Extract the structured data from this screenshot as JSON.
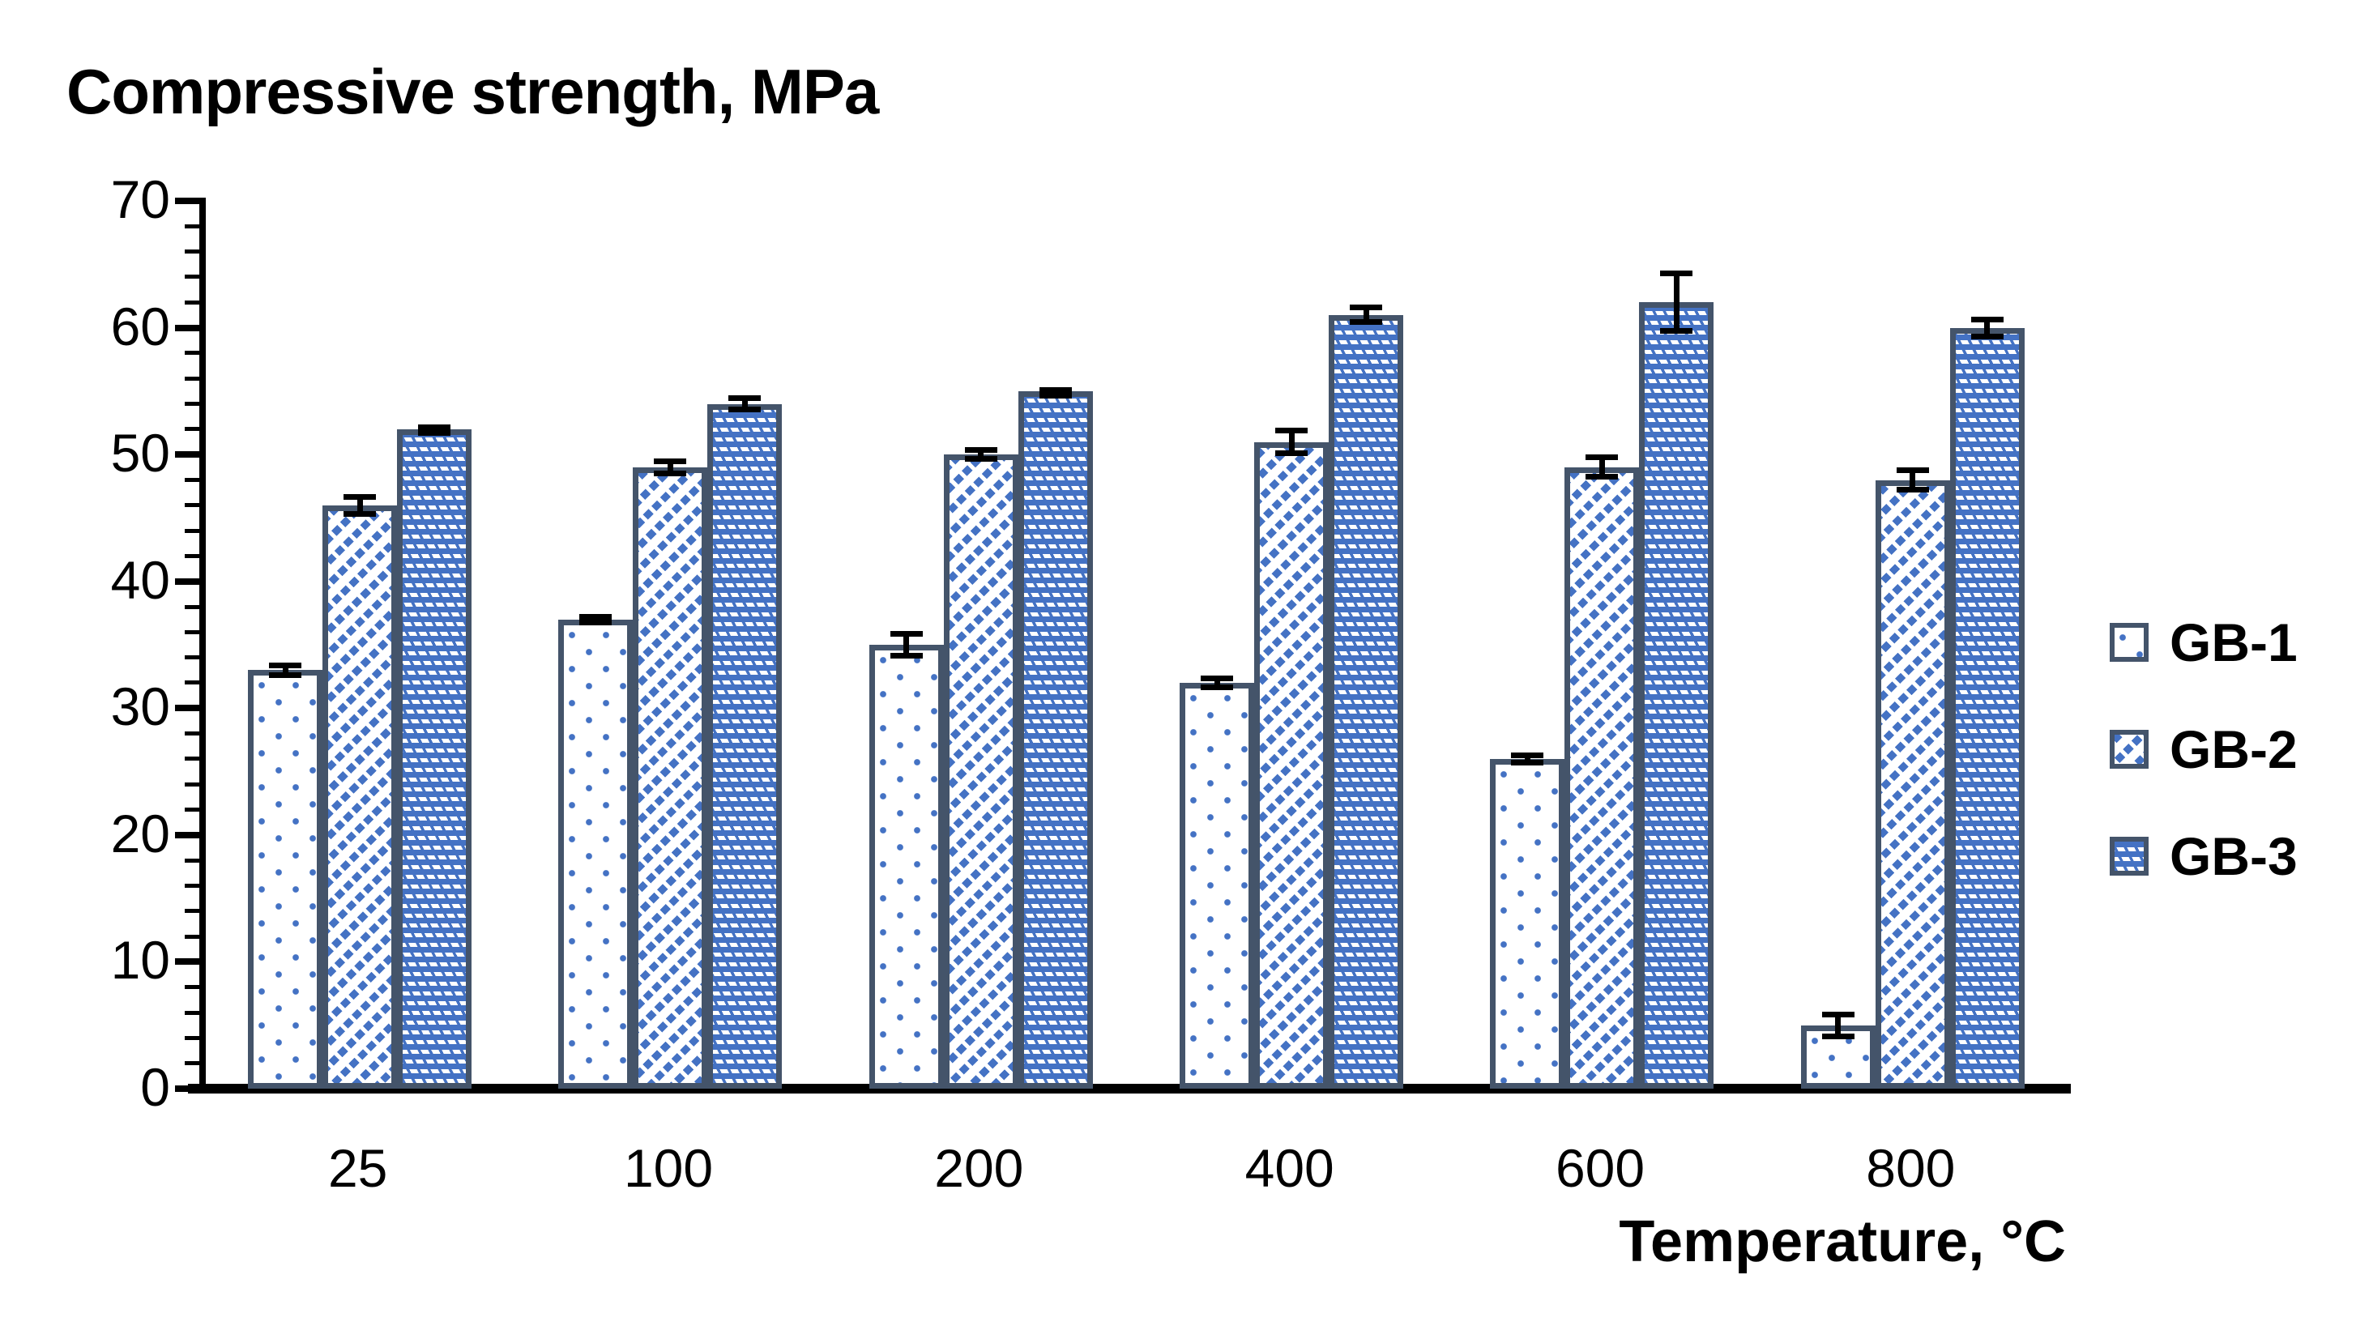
{
  "chart_data": {
    "type": "bar",
    "title": "Compressive strength, MPa",
    "xlabel": "Temperature,  °C",
    "ylabel": "Compressive strength, MPa",
    "categories": [
      "25",
      "100",
      "200",
      "400",
      "600",
      "800"
    ],
    "series": [
      {
        "name": "GB-1",
        "pattern": "dotted-white",
        "values": [
          33,
          37,
          35,
          32,
          26,
          5
        ],
        "errors": [
          0.6,
          0.4,
          1.1,
          0.6,
          0.5,
          1.1
        ]
      },
      {
        "name": "GB-2",
        "pattern": "diagonal-dashes",
        "values": [
          46,
          49,
          50,
          51,
          49,
          48
        ],
        "errors": [
          0.9,
          0.7,
          0.6,
          1.1,
          1.0,
          1.0
        ]
      },
      {
        "name": "GB-3",
        "pattern": "blue-checker-dashes",
        "values": [
          52,
          54,
          55,
          61,
          62,
          60
        ],
        "errors": [
          0.4,
          0.7,
          0.3,
          0.8,
          2.5,
          0.9
        ]
      }
    ],
    "ylim": [
      0,
      70
    ],
    "ytick_step": 10,
    "ytick_minor_step": 2,
    "yticks": [
      0,
      10,
      20,
      30,
      40,
      50,
      60,
      70
    ],
    "grid": false,
    "legend_position": "right",
    "error_bars": true,
    "colors": {
      "fill": "#4472C4",
      "outline": "#44546A",
      "text": "#000000",
      "background": "#FFFFFF",
      "error_bar": "#000000"
    }
  }
}
